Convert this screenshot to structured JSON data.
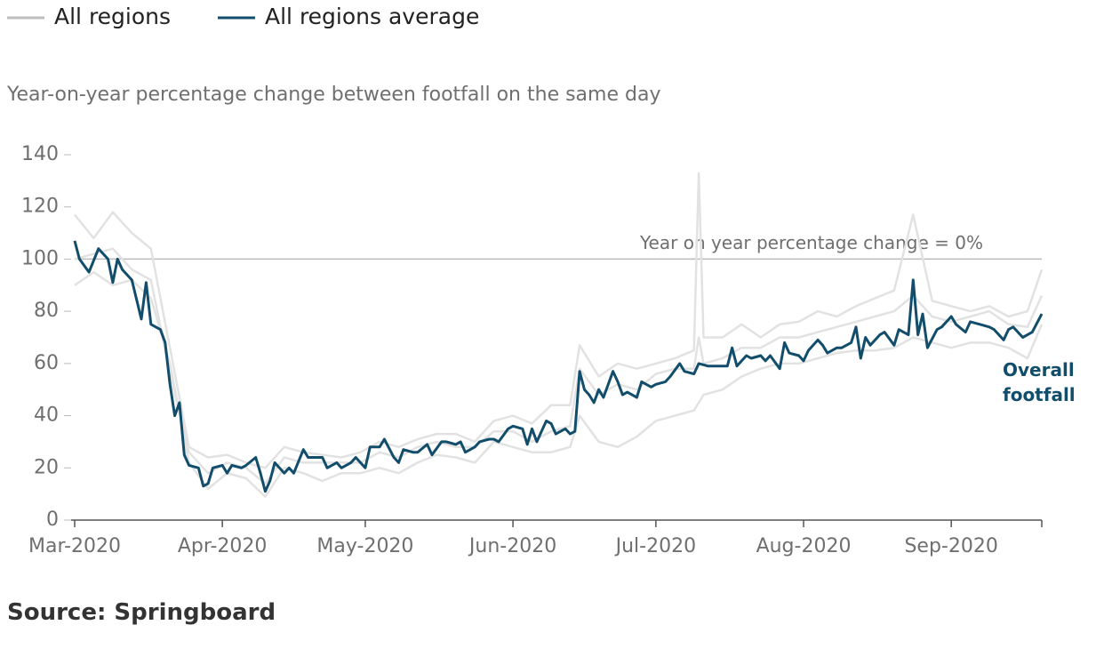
{
  "chart_data": {
    "type": "line",
    "subtitle": "Year-on-year percentage change between footfall on the same day",
    "source": "Source: Springboard",
    "end_label": "Overall footfall",
    "reference": {
      "value": 100,
      "label": "Year on year percentage change = 0%"
    },
    "xlim": [
      0,
      203
    ],
    "xticks": [
      {
        "value": 0,
        "label": "Mar-2020"
      },
      {
        "value": 31,
        "label": "Apr-2020"
      },
      {
        "value": 61,
        "label": "May-2020"
      },
      {
        "value": 92,
        "label": "Jun-2020"
      },
      {
        "value": 122,
        "label": "Jul-2020"
      },
      {
        "value": 153,
        "label": "Aug-2020"
      },
      {
        "value": 184,
        "label": "Sep-2020"
      }
    ],
    "ylim": [
      0,
      140
    ],
    "yticks": [
      0,
      20,
      40,
      60,
      80,
      100,
      120,
      140
    ],
    "series": [
      {
        "name": "All regions",
        "color": "#e2e2e2",
        "x": [
          0,
          4,
          8,
          12,
          16,
          20,
          24,
          28,
          32,
          36,
          40,
          44,
          48,
          52,
          56,
          60,
          64,
          68,
          72,
          76,
          80,
          84,
          88,
          92,
          96,
          100,
          104,
          106,
          110,
          114,
          118,
          122,
          126,
          130,
          131,
          132,
          136,
          140,
          144,
          148,
          152,
          156,
          160,
          164,
          168,
          172,
          176,
          180,
          184,
          188,
          192,
          196,
          200,
          203
        ],
        "values": [
          [
            117,
            108,
            118,
            110,
            104,
            66,
            28,
            24,
            25,
            22,
            20,
            28,
            26,
            25,
            24,
            26,
            30,
            28,
            31,
            33,
            33,
            30,
            38,
            40,
            37,
            44,
            44,
            67,
            55,
            60,
            58,
            60,
            62,
            65,
            133,
            70,
            70,
            75,
            70,
            75,
            76,
            80,
            78,
            82,
            85,
            88,
            117,
            84,
            82,
            80,
            82,
            78,
            80,
            96
          ],
          [
            90,
            95,
            90,
            92,
            85,
            60,
            22,
            12,
            18,
            16,
            9,
            20,
            18,
            15,
            18,
            18,
            20,
            18,
            22,
            25,
            24,
            22,
            30,
            28,
            26,
            26,
            28,
            40,
            30,
            28,
            32,
            38,
            40,
            42,
            45,
            48,
            50,
            55,
            58,
            60,
            60,
            62,
            64,
            65,
            65,
            66,
            70,
            68,
            66,
            68,
            68,
            66,
            62,
            75
          ],
          [
            100,
            102,
            104,
            96,
            92,
            56,
            26,
            18,
            22,
            20,
            14,
            24,
            22,
            22,
            22,
            22,
            26,
            24,
            28,
            30,
            28,
            28,
            34,
            34,
            30,
            34,
            36,
            58,
            48,
            52,
            50,
            56,
            58,
            58,
            70,
            60,
            62,
            66,
            66,
            70,
            70,
            72,
            74,
            76,
            78,
            80,
            86,
            78,
            76,
            78,
            80,
            75,
            74,
            86
          ]
        ]
      },
      {
        "name": "All regions average",
        "color": "#124e6b",
        "x": [
          0,
          1,
          3,
          5,
          7,
          8,
          9,
          10,
          12,
          14,
          15,
          16,
          18,
          19,
          20,
          21,
          22,
          23,
          24,
          26,
          27,
          28,
          29,
          31,
          32,
          33,
          35,
          36,
          38,
          39,
          40,
          41,
          42,
          44,
          45,
          46,
          48,
          49,
          51,
          52,
          53,
          55,
          56,
          58,
          59,
          61,
          62,
          64,
          65,
          67,
          68,
          69,
          71,
          72,
          74,
          75,
          77,
          78,
          80,
          81,
          82,
          84,
          85,
          87,
          88,
          89,
          91,
          92,
          94,
          95,
          96,
          97,
          99,
          100,
          101,
          103,
          104,
          105,
          106,
          107,
          108,
          109,
          110,
          111,
          113,
          114,
          115,
          116,
          118,
          119,
          121,
          122,
          124,
          125,
          127,
          128,
          130,
          131,
          133,
          135,
          137,
          138,
          139,
          141,
          142,
          144,
          145,
          146,
          148,
          149,
          150,
          152,
          153,
          154,
          156,
          157,
          158,
          160,
          161,
          163,
          164,
          165,
          166,
          167,
          169,
          170,
          172,
          173,
          175,
          176,
          177,
          178,
          179,
          181,
          182,
          184,
          185,
          187,
          188,
          190,
          192,
          193,
          195,
          196,
          197,
          199,
          201,
          203
        ],
        "values": [
          107,
          100,
          95,
          104,
          100,
          91,
          100,
          96,
          92,
          77,
          91,
          75,
          73,
          68,
          52,
          40,
          45,
          25,
          21,
          20,
          13,
          14,
          20,
          21,
          18,
          21,
          20,
          21,
          24,
          18,
          11,
          15,
          22,
          18,
          20,
          18,
          27,
          24,
          24,
          24,
          20,
          22,
          20,
          22,
          24,
          20,
          28,
          28,
          31,
          24,
          22,
          27,
          26,
          26,
          29,
          25,
          30,
          30,
          29,
          30,
          26,
          28,
          30,
          31,
          31,
          30,
          35,
          36,
          35,
          29,
          35,
          30,
          38,
          37,
          33,
          35,
          33,
          34,
          57,
          50,
          48,
          45,
          50,
          47,
          57,
          53,
          48,
          49,
          47,
          53,
          51,
          52,
          53,
          55,
          60,
          57,
          56,
          60,
          59,
          59,
          59,
          66,
          59,
          63,
          62,
          63,
          61,
          63,
          58,
          68,
          64,
          63,
          61,
          65,
          69,
          67,
          64,
          66,
          66,
          68,
          74,
          62,
          70,
          67,
          71,
          72,
          67,
          73,
          71,
          92,
          71,
          79,
          66,
          73,
          74,
          78,
          75,
          72,
          76,
          75,
          74,
          73,
          69,
          73,
          74,
          70,
          72,
          79
        ]
      }
    ]
  }
}
